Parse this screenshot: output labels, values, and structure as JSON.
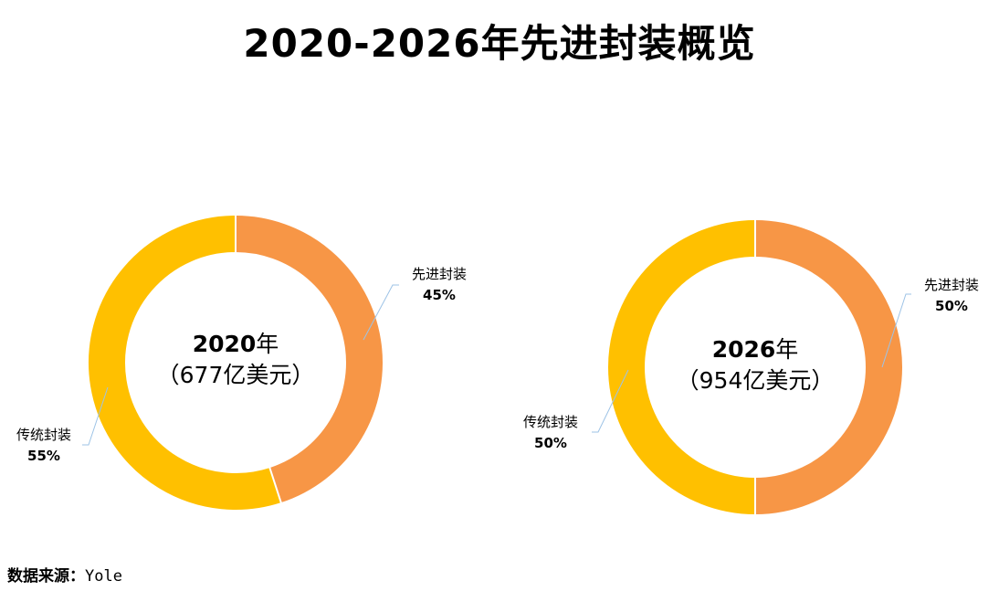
{
  "title": "2020-2026年先进封装概览",
  "source": {
    "label": "数据来源：",
    "name": "Yole"
  },
  "colors": {
    "advanced": "#F79646",
    "traditional": "#FFC000",
    "leader": "#9DC3E6"
  },
  "chart_data": [
    {
      "type": "pie",
      "center_year": "2020",
      "center_year_unit": "年",
      "center_value": "（677亿美元）",
      "slices": [
        {
          "name": "先进封装",
          "value": 45,
          "label": "45%"
        },
        {
          "name": "传统封装",
          "value": 55,
          "label": "55%"
        }
      ]
    },
    {
      "type": "pie",
      "center_year": "2026",
      "center_year_unit": "年",
      "center_value": "（954亿美元）",
      "slices": [
        {
          "name": "先进封装",
          "value": 50,
          "label": "50%"
        },
        {
          "name": "传统封装",
          "value": 50,
          "label": "50%"
        }
      ]
    }
  ]
}
